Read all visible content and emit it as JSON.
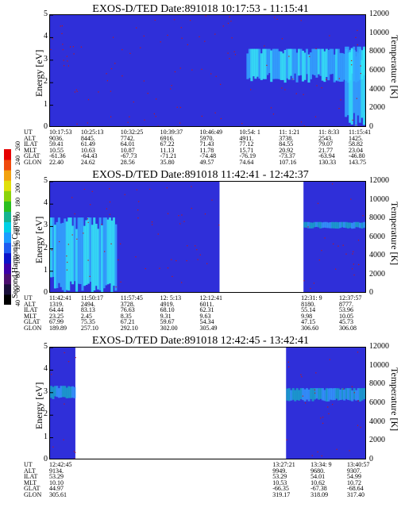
{
  "colors": {
    "background_fill": "#2f2fd9",
    "blank": "#ffffff",
    "light_blue": "#33a6ff",
    "cyan": "#35e7f7",
    "teal": "#16b3c7",
    "red": "#c01a1a",
    "colorbar": [
      "#000000",
      "#1a0f3a",
      "#4b0f6f",
      "#3c00a8",
      "#0b13c9",
      "#1e5cf0",
      "#1b9dff",
      "#00d0e6",
      "#15b390",
      "#2bbf1f",
      "#8bd30a",
      "#e1e00a",
      "#f2a20e",
      "#f04a0d",
      "#e60000"
    ]
  },
  "colorbar": {
    "label": "Second Harmonic Current",
    "ticks": [
      "40",
      "60",
      "80",
      "100",
      "120",
      "140",
      "160",
      "180",
      "200",
      "220",
      "240",
      "260"
    ]
  },
  "chart_data": [
    {
      "type": "heatmap",
      "title": "EXOS-D/TED   Date:891018   10:17:53 - 11:15:41",
      "ylabel": "Energy [eV]",
      "ylabel_right": "Temperature [K]",
      "ylim": [
        0,
        5
      ],
      "ylim_right": [
        0,
        12000
      ],
      "yticks": [
        "0",
        "1",
        "2",
        "3",
        "4",
        "5"
      ],
      "yticks_right": [
        "0",
        "2000",
        "4000",
        "6000",
        "8000",
        "10000",
        "12000"
      ],
      "data_coverage": [
        [
          0,
          1
        ]
      ],
      "features": [
        {
          "x": [
            0.62,
            1.0
          ],
          "energy": [
            2.0,
            3.5
          ],
          "intensity": "high"
        },
        {
          "x": [
            0.93,
            1.0
          ],
          "energy": [
            0.0,
            3.6
          ],
          "intensity": "high"
        }
      ],
      "rows": [
        "UT",
        "ALT",
        "ILAT",
        "MLT",
        "GLAT",
        "GLON"
      ],
      "columns": [
        {
          "pos": 0.0,
          "values": [
            "10:17:53",
            "9036.",
            "59.41",
            "10.55",
            "-61.36",
            "22.40"
          ]
        },
        {
          "pos": 0.125,
          "values": [
            "10:25:13",
            "8445.",
            "61.49",
            "10.63",
            "-64.43",
            "24.62"
          ]
        },
        {
          "pos": 0.25,
          "values": [
            "10:32:25",
            "7742.",
            "64.01",
            "10.87",
            "-67.73",
            "28.56"
          ]
        },
        {
          "pos": 0.375,
          "values": [
            "10:39:37",
            "6916.",
            "67.22",
            "11.13",
            "-71.21",
            "35.80"
          ]
        },
        {
          "pos": 0.5,
          "values": [
            "10:46:49",
            "5970.",
            "71.43",
            "11.78",
            "-74.48",
            "49.57"
          ]
        },
        {
          "pos": 0.625,
          "values": [
            "10:54: 1",
            "4911.",
            "77.12",
            "15.71",
            "-76.19",
            "74.64"
          ]
        },
        {
          "pos": 0.75,
          "values": [
            "11: 1:21",
            "3738.",
            "84.55",
            "20.92",
            "-73.37",
            "107.16"
          ]
        },
        {
          "pos": 0.875,
          "values": [
            "11: 8:33",
            "2543.",
            "79.07",
            "21.77",
            "-63.94",
            "130.33"
          ]
        },
        {
          "pos": 1.0,
          "values": [
            "11:15:41",
            "1425.",
            "58.82",
            "23.04",
            "-46.80",
            "143.75"
          ]
        }
      ]
    },
    {
      "type": "heatmap",
      "title": "EXOS-D/TED   Date:891018   11:42:41 - 12:42:37",
      "ylabel": "Energy [eV]",
      "ylabel_right": "Temperature [K]",
      "ylim": [
        0,
        5
      ],
      "ylim_right": [
        0,
        12000
      ],
      "yticks": [
        "0",
        "1",
        "2",
        "3",
        "4",
        "5"
      ],
      "yticks_right": [
        "0",
        "2000",
        "4000",
        "6000",
        "8000",
        "10000",
        "12000"
      ],
      "data_coverage": [
        [
          0,
          0.535
        ],
        [
          0.8,
          1.0
        ]
      ],
      "features": [
        {
          "x": [
            0.0,
            0.21
          ],
          "energy": [
            0.0,
            3.4
          ],
          "intensity": "high"
        },
        {
          "x": [
            0.8,
            1.0
          ],
          "energy": [
            2.9,
            3.2
          ],
          "intensity": "medium"
        }
      ],
      "rows": [
        "UT",
        "ALT",
        "ILAT",
        "MLT",
        "GLAT",
        "GLON"
      ],
      "columns": [
        {
          "pos": 0.0,
          "values": [
            "11:42:41",
            "1319.",
            "64.44",
            "23.25",
            "67.99",
            "189.89"
          ]
        },
        {
          "pos": 0.125,
          "values": [
            "11:50:17",
            "2494.",
            "83.13",
            "2.45",
            "75.35",
            "257.10"
          ]
        },
        {
          "pos": 0.25,
          "values": [
            "11:57:45",
            "3728.",
            "76.63",
            "8.35",
            "67.21",
            "292.10"
          ]
        },
        {
          "pos": 0.375,
          "values": [
            "12: 5:13",
            "4919.",
            "68.10",
            "9.31",
            "59.67",
            "302.00"
          ]
        },
        {
          "pos": 0.5,
          "values": [
            "12:12:41",
            "6011.",
            "62.31",
            "9.63",
            "54.34",
            "305.49"
          ]
        },
        {
          "pos": 0.82,
          "values": [
            "12:31: 9",
            "8180.",
            "55.14",
            "9.98",
            "47.15",
            "306.60"
          ]
        },
        {
          "pos": 0.94,
          "values": [
            "12:37:57",
            "8777.",
            "53.96",
            "10.05",
            "45.73",
            "306.08"
          ]
        }
      ]
    },
    {
      "type": "heatmap",
      "title": "EXOS-D/TED   Date:891018   12:42:45 - 13:42:41",
      "ylabel": "Energy [eV]",
      "ylabel_right": "Temperature [K]",
      "ylim": [
        0,
        5
      ],
      "ylim_right": [
        0,
        12000
      ],
      "yticks": [
        "0",
        "1",
        "2",
        "3",
        "4",
        "5"
      ],
      "yticks_right": [
        "0",
        "2000",
        "4000",
        "6000",
        "8000",
        "10000",
        "12000"
      ],
      "data_coverage": [
        [
          0,
          0.08
        ],
        [
          0.745,
          1.0
        ]
      ],
      "features": [
        {
          "x": [
            0.0,
            0.08
          ],
          "energy": [
            2.7,
            3.3
          ],
          "intensity": "medium"
        },
        {
          "x": [
            0.745,
            1.0
          ],
          "energy": [
            2.6,
            3.2
          ],
          "intensity": "medium"
        }
      ],
      "rows": [
        "UT",
        "ALT",
        "ILAT",
        "MLT",
        "GLAT",
        "GLON"
      ],
      "columns": [
        {
          "pos": 0.0,
          "values": [
            "12:42:45",
            "9134.",
            "53.29",
            "10.10",
            "44.97",
            "305.61"
          ]
        },
        {
          "pos": 0.73,
          "values": [
            "13:27:21",
            "9949.",
            "53.29",
            "10.53",
            "-66.35",
            "319.17"
          ]
        },
        {
          "pos": 0.85,
          "values": [
            "13:34: 9",
            "9680.",
            "54.01",
            "10.62",
            "-67.38",
            "318.09"
          ]
        },
        {
          "pos": 0.965,
          "values": [
            "13:40:57",
            "9307.",
            "54.99",
            "10.72",
            "-68.64",
            "317.40"
          ]
        }
      ]
    }
  ]
}
